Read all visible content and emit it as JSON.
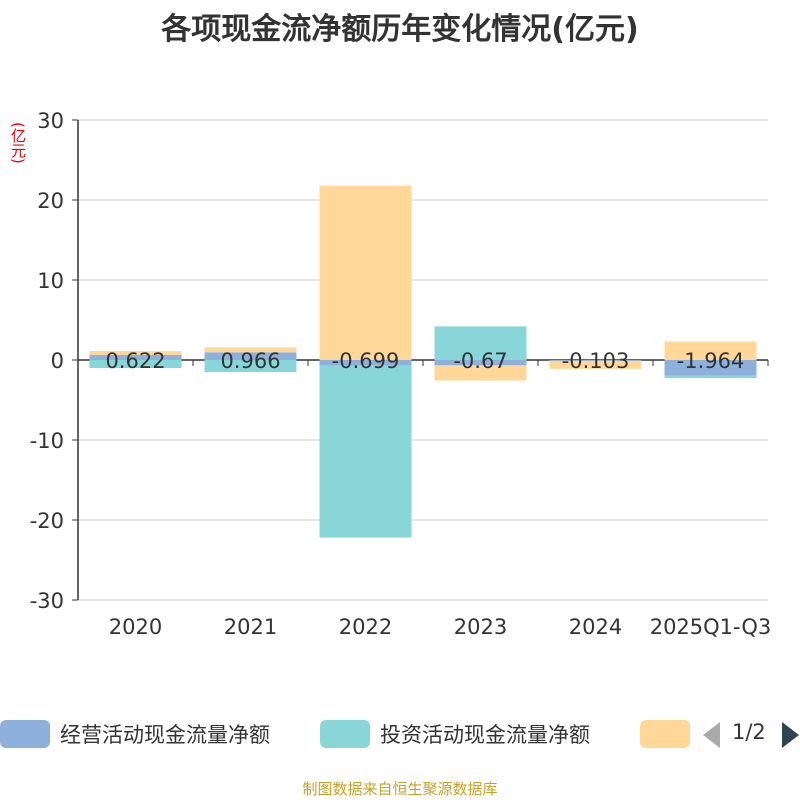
{
  "title": "各项现金流净额历年变化情况(亿元)",
  "unit_label": "(亿元)",
  "source": "制图数据来自恒生聚源数据库",
  "legend": {
    "items": [
      {
        "label": "经营活动现金流量净额",
        "color": "#8eb0dc"
      },
      {
        "label": "投资活动现金流量净额",
        "color": "#88d6d8"
      },
      {
        "label": "",
        "color": "#ffd899"
      }
    ],
    "page": "1/2"
  },
  "chart_data": {
    "type": "bar",
    "categories": [
      "2020",
      "2021",
      "2022",
      "2023",
      "2024",
      "2025Q1-Q3"
    ],
    "ylim": [
      -30,
      30
    ],
    "yticks": [
      30,
      20,
      10,
      0,
      -10,
      -20,
      -30
    ],
    "grid": true,
    "legend_position": "bottom",
    "series": [
      {
        "name": "经营活动现金流量净额",
        "color": "#8eb0dc",
        "values": [
          0.622,
          0.966,
          -0.699,
          -0.67,
          -0.103,
          -1.964
        ]
      },
      {
        "name": "投资活动现金流量净额",
        "color": "#88d6d8",
        "values": [
          -1.0,
          -1.5,
          -21.5,
          4.2,
          0.0,
          -0.3
        ]
      },
      {
        "color": "#ffd899",
        "values": [
          0.5,
          0.6,
          21.8,
          -1.9,
          -1.0,
          2.3
        ]
      }
    ],
    "data_labels": [
      "0.622",
      "0.966",
      "-0.699",
      "-0.67",
      "-0.103",
      "-1.964"
    ]
  }
}
